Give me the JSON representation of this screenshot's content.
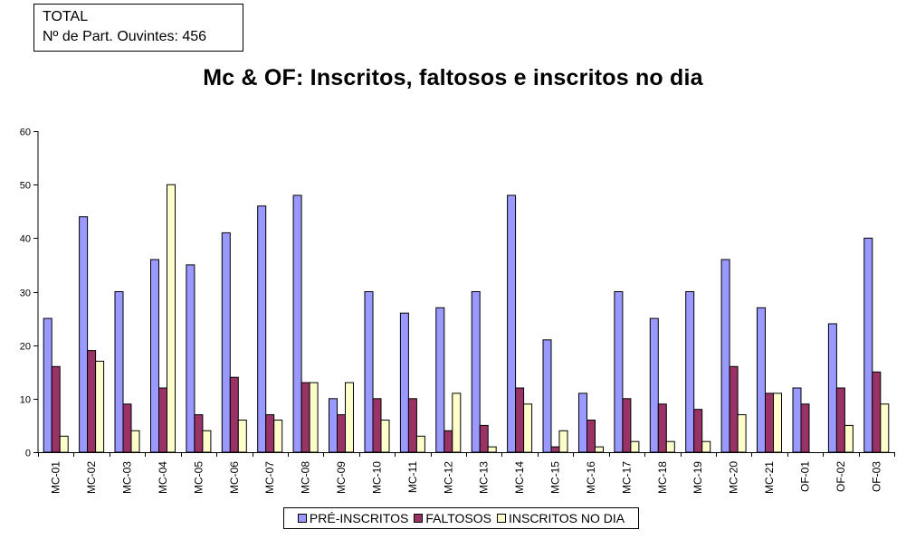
{
  "info": {
    "line1": "TOTAL",
    "line2": "Nº de Part. Ouvintes: 456"
  },
  "chart_data": {
    "type": "bar",
    "title": "Mc & OF: Inscritos, faltosos e inscritos no dia",
    "xlabel": "",
    "ylabel": "",
    "ylim": [
      0,
      60
    ],
    "yticks": [
      0,
      10,
      20,
      30,
      40,
      50,
      60
    ],
    "categories": [
      "MC-01",
      "MC-02",
      "MC-03",
      "MC-04",
      "MC-05",
      "MC-06",
      "MC-07",
      "MC-08",
      "MC-09",
      "MC-10",
      "MC-11",
      "MC-12",
      "MC-13",
      "MC-14",
      "MC-15",
      "MC-16",
      "MC-17",
      "MC-18",
      "MC-19",
      "MC-20",
      "MC-21",
      "OF-01",
      "OF-02",
      "OF-03"
    ],
    "series": [
      {
        "name": "PRÉ-INSCRITOS",
        "color": "#9999FF",
        "values": [
          25,
          44,
          30,
          36,
          35,
          41,
          46,
          48,
          10,
          30,
          26,
          27,
          30,
          48,
          21,
          11,
          30,
          25,
          30,
          36,
          27,
          12,
          24,
          40
        ]
      },
      {
        "name": "FALTOSOS",
        "color": "#993366",
        "values": [
          16,
          19,
          9,
          12,
          7,
          14,
          7,
          13,
          7,
          10,
          10,
          4,
          5,
          12,
          1,
          6,
          10,
          9,
          8,
          16,
          11,
          9,
          12,
          15
        ]
      },
      {
        "name": "INSCRITOS NO DIA",
        "color": "#FFFFCC",
        "values": [
          3,
          17,
          4,
          50,
          4,
          6,
          6,
          13,
          13,
          6,
          3,
          11,
          1,
          9,
          4,
          1,
          2,
          2,
          2,
          7,
          11,
          0,
          5,
          9
        ]
      }
    ],
    "legend_position": "bottom",
    "grid": false
  }
}
